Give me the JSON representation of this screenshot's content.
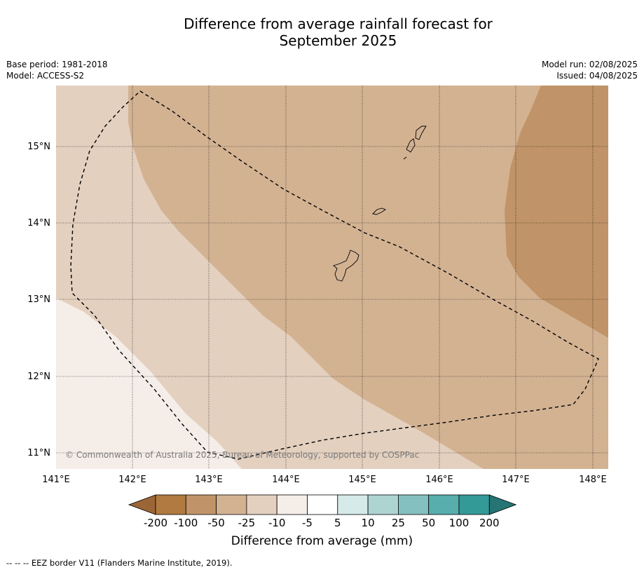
{
  "title_line1": "Difference from average rainfall forecast for",
  "title_line2": "September 2025",
  "base_period": "Base period: 1981-2018",
  "model": "Model: ACCESS-S2",
  "model_run": "Model run: 02/08/2025",
  "issued": "Issued: 04/08/2025",
  "copyright": "© Commonwealth of Australia 2025, Bureau of Meteorology, supported by COSPPac",
  "footnote": "--  --  -- EEZ border V11 (Flanders Marine Institute, 2019).",
  "x_ticks": [
    "141°E",
    "142°E",
    "143°E",
    "144°E",
    "145°E",
    "146°E",
    "147°E",
    "148°E"
  ],
  "y_ticks": [
    "15°N",
    "14°N",
    "13°N",
    "12°N",
    "11°N"
  ],
  "legend": {
    "title": "Difference from average (mm)",
    "ticks": [
      "-200",
      "-100",
      "-50",
      "-25",
      "-10",
      "-5",
      "5",
      "10",
      "25",
      "50",
      "100",
      "200"
    ],
    "colors": [
      "#9c6535",
      "#b07a40",
      "#c09468",
      "#d3b292",
      "#e3d0bf",
      "#f5ede8",
      "#ffffff",
      "#d5eae9",
      "#aed4d2",
      "#84c0bf",
      "#58adad",
      "#339a98",
      "#247574"
    ]
  }
}
